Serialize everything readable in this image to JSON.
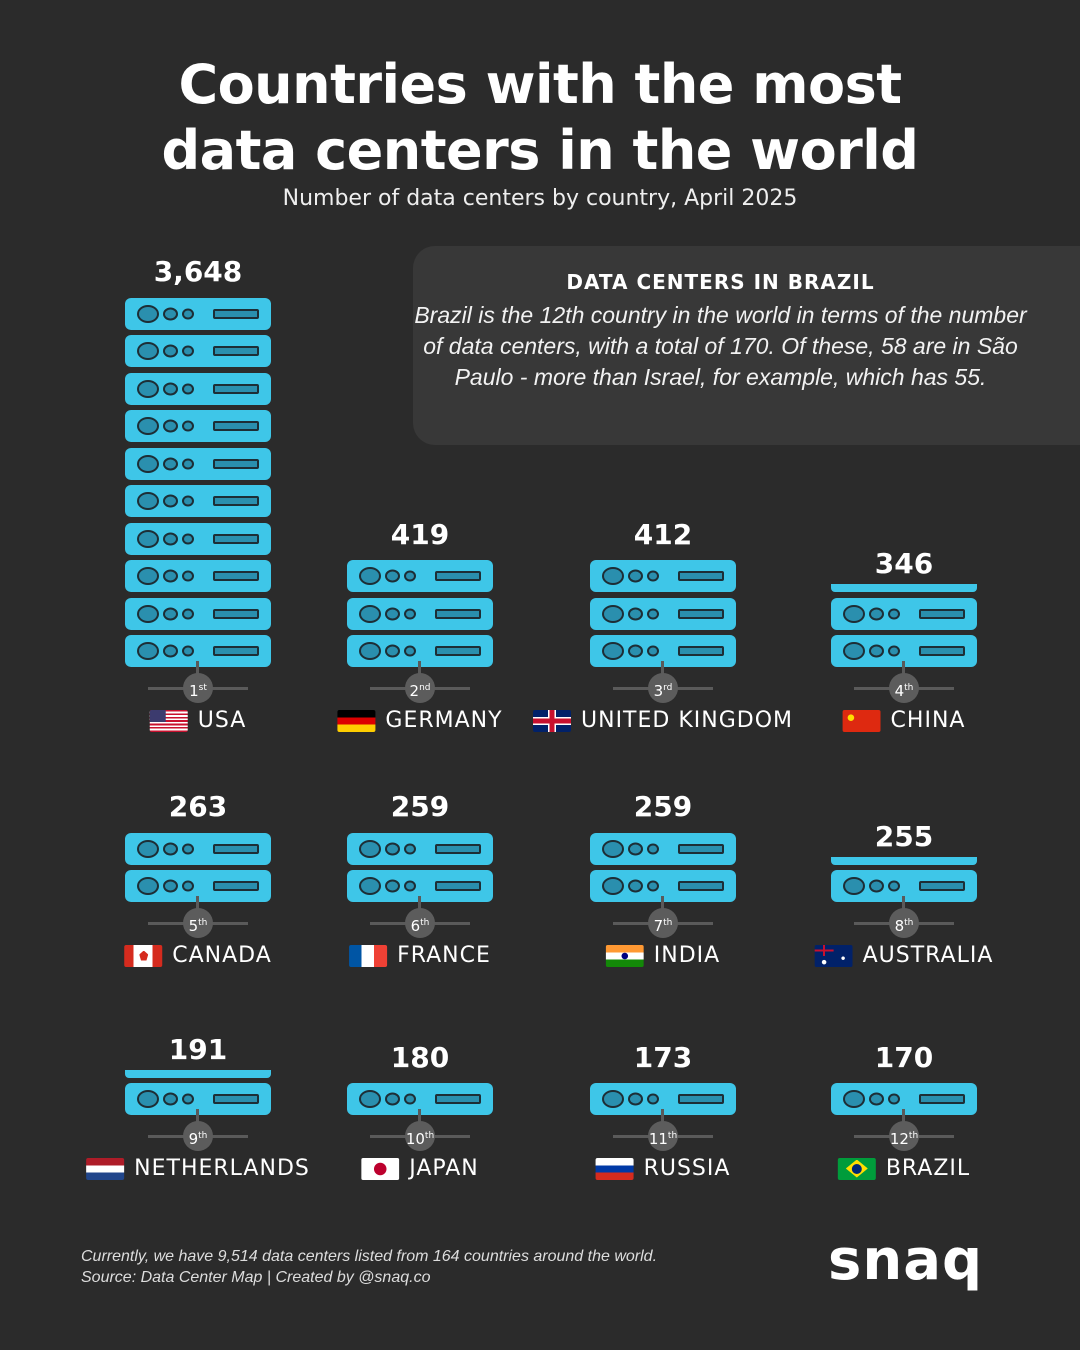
{
  "title_line1": "Countries with the most",
  "title_line2": "data centers in the world",
  "subtitle": "Number of data centers by country, April 2025",
  "info": {
    "heading": "DATA CENTERS IN BRAZIL",
    "text": "Brazil is the 12th country in the world in terms of the number of data centers, with a total of 170. Of these, 58 are in São Paulo - more than Israel, for example, which has 55."
  },
  "footer": {
    "line1": "Currently, we have 9,514 data centers listed from 164 countries around the world.",
    "line2": "Source: Data Center Map | Created by @snaq.co"
  },
  "logo": "snaq",
  "colors": {
    "background": "#2b2b2b",
    "server": "#3ec6e8",
    "panel": "#383838",
    "badge": "#5c5c5c"
  },
  "chart_data": {
    "type": "pictogram",
    "categories": [
      "USA",
      "GERMANY",
      "UNITED KINGDOM",
      "CHINA",
      "CANADA",
      "FRANCE",
      "INDIA",
      "AUSTRALIA",
      "NETHERLANDS",
      "JAPAN",
      "RUSSIA",
      "BRAZIL"
    ],
    "values": [
      3648,
      419,
      412,
      346,
      263,
      259,
      259,
      255,
      191,
      180,
      173,
      170
    ],
    "value_labels": [
      "3,648",
      "419",
      "412",
      "346",
      "263",
      "259",
      "259",
      "255",
      "191",
      "180",
      "173",
      "170"
    ],
    "ranks": [
      {
        "n": "1",
        "s": "st"
      },
      {
        "n": "2",
        "s": "nd"
      },
      {
        "n": "3",
        "s": "rd"
      },
      {
        "n": "4",
        "s": "th"
      },
      {
        "n": "5",
        "s": "th"
      },
      {
        "n": "6",
        "s": "th"
      },
      {
        "n": "7",
        "s": "th"
      },
      {
        "n": "8",
        "s": "th"
      },
      {
        "n": "9",
        "s": "th"
      },
      {
        "n": "10",
        "s": "th"
      },
      {
        "n": "11",
        "s": "th"
      },
      {
        "n": "12",
        "s": "th"
      }
    ],
    "flags": [
      "flag-us-icon",
      "flag-de-icon",
      "flag-uk-icon",
      "flag-cn-icon",
      "flag-ca-icon",
      "flag-fr-icon",
      "flag-in-icon",
      "flag-au-icon",
      "flag-nl-icon",
      "flag-jp-icon",
      "flag-ru-icon",
      "flag-br-icon"
    ]
  }
}
